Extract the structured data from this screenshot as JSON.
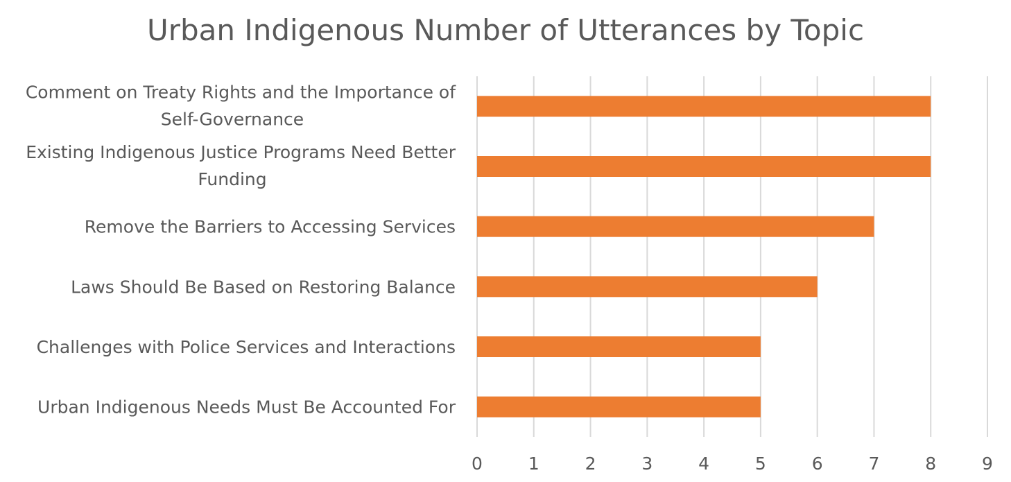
{
  "chart_data": {
    "type": "bar",
    "orientation": "horizontal",
    "title": "Urban Indigenous Number of Utterances by Topic",
    "categories": [
      "Comment on Treaty Rights and the Importance of Self-Governance",
      "Existing Indigenous Justice Programs Need Better Funding",
      "Remove the Barriers to Accessing Services",
      "Laws Should Be Based on Restoring Balance",
      "Challenges with Police Services and Interactions",
      "Urban Indigenous Needs Must Be Accounted For"
    ],
    "values": [
      8,
      8,
      7,
      6,
      5,
      5
    ],
    "xlim": [
      0,
      9
    ],
    "xticks": [
      "0",
      "1",
      "2",
      "3",
      "4",
      "5",
      "6",
      "7",
      "8",
      "9"
    ],
    "grid": true,
    "legend": "none",
    "colors": {
      "bar": "#ED7D31",
      "grid": "#D9D9D9",
      "text": "#595959",
      "title": "#595959"
    }
  }
}
